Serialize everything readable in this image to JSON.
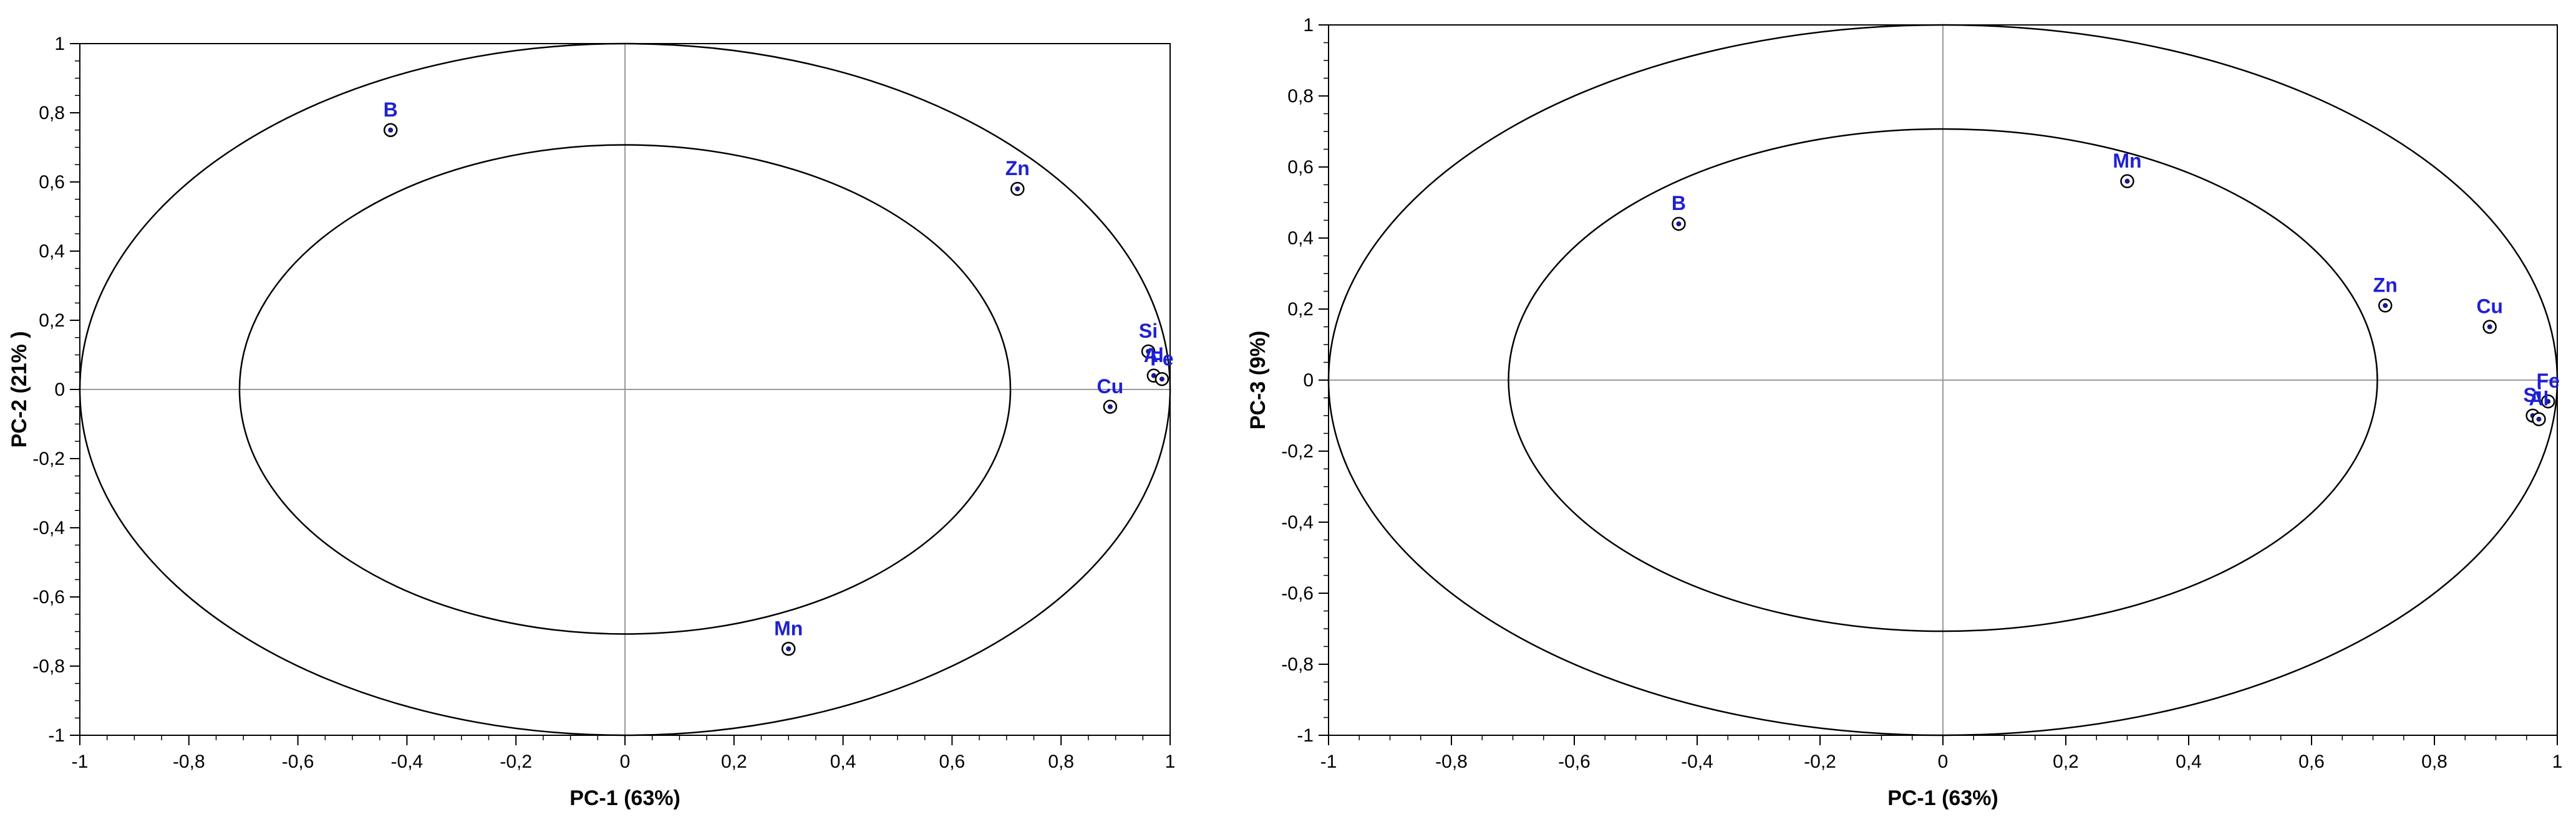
{
  "chart_data": [
    {
      "type": "scatter",
      "title": "",
      "xlabel": "PC-1 (63%)",
      "ylabel": "PC-2 (21% )",
      "xlim": [
        -1,
        1
      ],
      "ylim": [
        -1,
        1
      ],
      "x_ticks": [
        "-1",
        "-0,8",
        "-0,6",
        "-0,4",
        "-0,2",
        "0",
        "0,2",
        "0,4",
        "0,6",
        "0,8",
        "1"
      ],
      "y_ticks": [
        "-1",
        "-0,8",
        "-0,6",
        "-0,4",
        "-0,2",
        "0",
        "0,2",
        "0,4",
        "0,6",
        "0,8",
        "1"
      ],
      "circles": [
        1,
        0.7071
      ],
      "grid": false,
      "points": [
        {
          "label": "B",
          "x": -0.43,
          "y": 0.75
        },
        {
          "label": "Zn",
          "x": 0.72,
          "y": 0.58
        },
        {
          "label": "Si",
          "x": 0.96,
          "y": 0.11
        },
        {
          "label": "Al",
          "x": 0.97,
          "y": 0.04
        },
        {
          "label": "Fe",
          "x": 0.985,
          "y": 0.03
        },
        {
          "label": "Cu",
          "x": 0.89,
          "y": -0.05
        },
        {
          "label": "Mn",
          "x": 0.3,
          "y": -0.75
        }
      ]
    },
    {
      "type": "scatter",
      "title": "",
      "xlabel": "PC-1 (63%)",
      "ylabel": "PC-3 (9%)",
      "xlim": [
        -1,
        1
      ],
      "ylim": [
        -1,
        1
      ],
      "x_ticks": [
        "-1",
        "-0,8",
        "-0,6",
        "-0,4",
        "-0,2",
        "0",
        "0,2",
        "0,4",
        "0,6",
        "0,8",
        "1"
      ],
      "y_ticks": [
        "-1",
        "-0,8",
        "-0,6",
        "-0,4",
        "-0,2",
        "0",
        "0,2",
        "0,4",
        "0,6",
        "0,8",
        "1"
      ],
      "circles": [
        1,
        0.7071
      ],
      "grid": false,
      "points": [
        {
          "label": "B",
          "x": -0.43,
          "y": 0.44
        },
        {
          "label": "Mn",
          "x": 0.3,
          "y": 0.56
        },
        {
          "label": "Zn",
          "x": 0.72,
          "y": 0.21
        },
        {
          "label": "Cu",
          "x": 0.89,
          "y": 0.15
        },
        {
          "label": "Fe",
          "x": 0.985,
          "y": -0.06
        },
        {
          "label": "Si",
          "x": 0.96,
          "y": -0.1
        },
        {
          "label": "Al",
          "x": 0.97,
          "y": -0.11
        }
      ]
    }
  ]
}
